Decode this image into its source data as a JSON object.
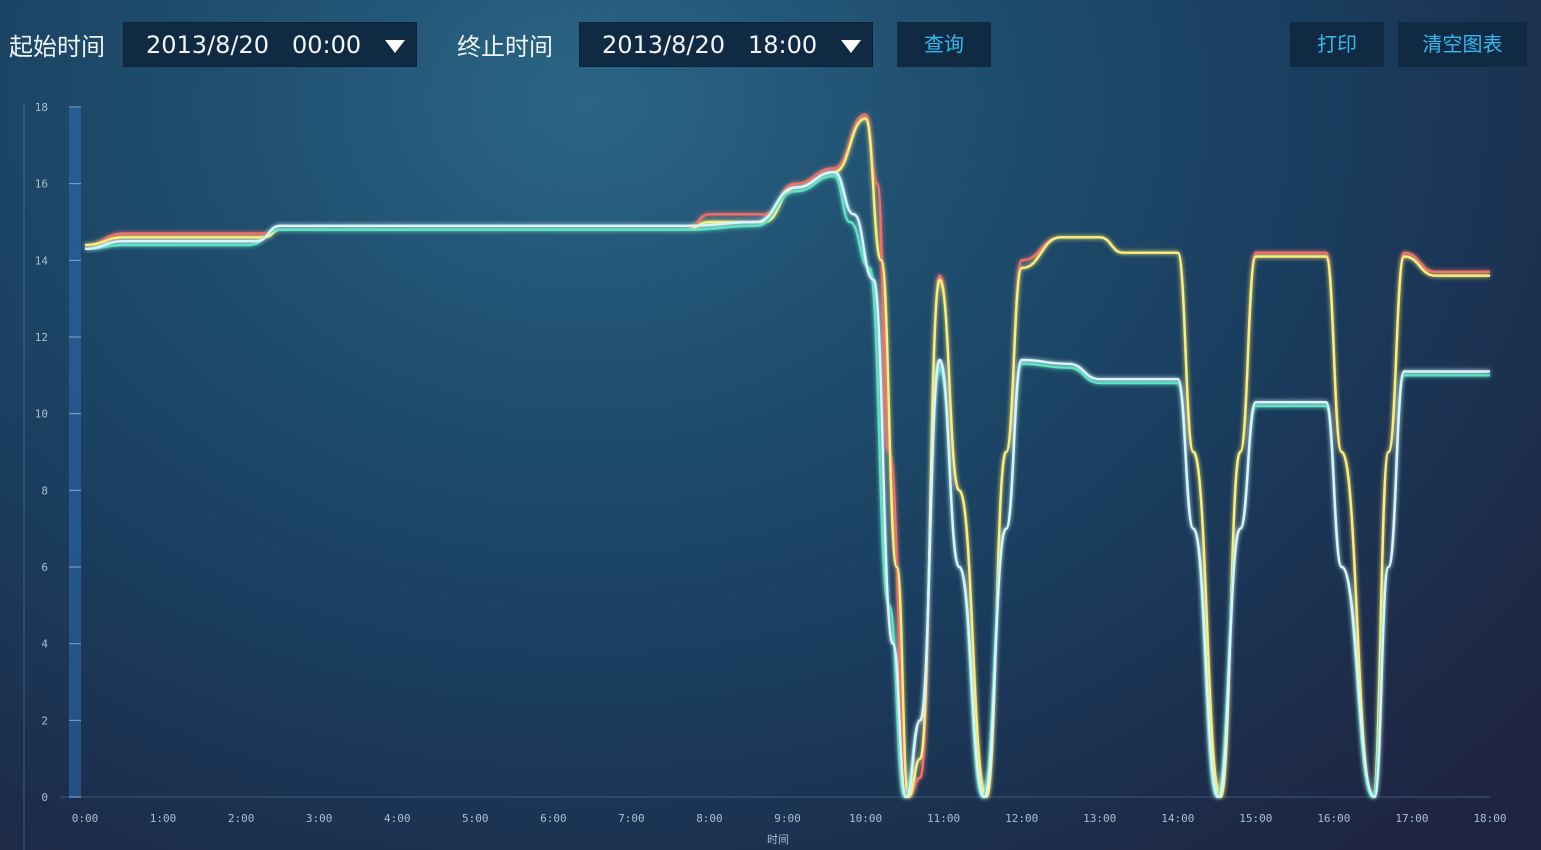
{
  "toolbar": {
    "start_label": "起始时间",
    "start_date": "2013/8/20",
    "start_time": "00:00",
    "end_label": "终止时间",
    "end_date": "2013/8/20",
    "end_time": "18:00",
    "query_label": "查询",
    "print_label": "打印",
    "clear_label": "清空图表"
  },
  "colors": {
    "accent_text": "#35b9ee",
    "control_bg": "#112a44",
    "axis_bar": "#2e6db0",
    "series": [
      "#f0706a",
      "#f7f07a",
      "#5de3c2",
      "#d8f4ff"
    ]
  },
  "chart_data": {
    "type": "line",
    "xlabel": "时间",
    "ylabel": "",
    "xlim": [
      0,
      18
    ],
    "ylim": [
      0,
      18
    ],
    "grid": false,
    "x_ticks": [
      "0:00",
      "1:00",
      "2:00",
      "3:00",
      "4:00",
      "5:00",
      "6:00",
      "7:00",
      "8:00",
      "9:00",
      "10:00",
      "11:00",
      "12:00",
      "13:00",
      "14:00",
      "15:00",
      "16:00",
      "17:00",
      "18:00"
    ],
    "y_ticks": [
      0,
      2,
      4,
      6,
      8,
      10,
      12,
      14,
      16,
      18
    ],
    "series": [
      {
        "values": [
          [
            0,
            14.4
          ],
          [
            0.5,
            14.7
          ],
          [
            2.3,
            14.7
          ],
          [
            2.5,
            14.8
          ],
          [
            7.7,
            14.8
          ],
          [
            8.0,
            15.2
          ],
          [
            8.7,
            15.2
          ],
          [
            9.1,
            16.0
          ],
          [
            9.6,
            16.4
          ],
          [
            10.0,
            17.8
          ],
          [
            10.15,
            16.0
          ],
          [
            10.3,
            9.0
          ],
          [
            10.55,
            0.0
          ],
          [
            10.7,
            0.5
          ],
          [
            10.95,
            13.6
          ],
          [
            11.2,
            8.0
          ],
          [
            11.55,
            0.0
          ],
          [
            11.8,
            9.0
          ],
          [
            12.0,
            14.0
          ],
          [
            12.5,
            14.6
          ],
          [
            13.0,
            14.6
          ],
          [
            13.3,
            14.2
          ],
          [
            14.0,
            14.2
          ],
          [
            14.2,
            9.0
          ],
          [
            14.55,
            0.0
          ],
          [
            14.8,
            9.0
          ],
          [
            15.0,
            14.2
          ],
          [
            15.9,
            14.2
          ],
          [
            16.1,
            9.0
          ],
          [
            16.5,
            0.0
          ],
          [
            16.7,
            9.0
          ],
          [
            16.9,
            14.2
          ],
          [
            17.3,
            13.7
          ],
          [
            18.0,
            13.7
          ]
        ]
      },
      {
        "values": [
          [
            0,
            14.4
          ],
          [
            0.5,
            14.6
          ],
          [
            2.3,
            14.6
          ],
          [
            2.5,
            14.8
          ],
          [
            7.7,
            14.8
          ],
          [
            8.0,
            15.0
          ],
          [
            8.7,
            15.0
          ],
          [
            9.1,
            15.9
          ],
          [
            9.6,
            16.3
          ],
          [
            10.0,
            17.7
          ],
          [
            10.2,
            14.0
          ],
          [
            10.4,
            6.0
          ],
          [
            10.55,
            0.0
          ],
          [
            10.7,
            1.0
          ],
          [
            10.95,
            13.5
          ],
          [
            11.2,
            8.0
          ],
          [
            11.55,
            0.0
          ],
          [
            11.8,
            9.0
          ],
          [
            12.0,
            13.8
          ],
          [
            12.5,
            14.6
          ],
          [
            13.0,
            14.6
          ],
          [
            13.3,
            14.2
          ],
          [
            14.0,
            14.2
          ],
          [
            14.2,
            9.0
          ],
          [
            14.55,
            0.0
          ],
          [
            14.8,
            9.0
          ],
          [
            15.0,
            14.1
          ],
          [
            15.9,
            14.1
          ],
          [
            16.1,
            9.0
          ],
          [
            16.5,
            0.0
          ],
          [
            16.7,
            9.0
          ],
          [
            16.9,
            14.1
          ],
          [
            17.3,
            13.6
          ],
          [
            18.0,
            13.6
          ]
        ]
      },
      {
        "values": [
          [
            0,
            14.3
          ],
          [
            0.5,
            14.4
          ],
          [
            2.1,
            14.4
          ],
          [
            2.5,
            14.8
          ],
          [
            7.7,
            14.8
          ],
          [
            8.6,
            14.9
          ],
          [
            9.1,
            15.8
          ],
          [
            9.6,
            16.2
          ],
          [
            9.8,
            15.0
          ],
          [
            10.05,
            13.8
          ],
          [
            10.3,
            5.0
          ],
          [
            10.5,
            0.0
          ],
          [
            10.7,
            2.0
          ],
          [
            10.95,
            11.2
          ],
          [
            11.2,
            6.0
          ],
          [
            11.5,
            0.0
          ],
          [
            11.8,
            7.0
          ],
          [
            12.0,
            11.3
          ],
          [
            12.6,
            11.2
          ],
          [
            13.0,
            10.8
          ],
          [
            14.0,
            10.8
          ],
          [
            14.2,
            7.0
          ],
          [
            14.5,
            0.0
          ],
          [
            14.8,
            7.0
          ],
          [
            15.0,
            10.2
          ],
          [
            15.9,
            10.2
          ],
          [
            16.1,
            6.0
          ],
          [
            16.5,
            0.0
          ],
          [
            16.7,
            6.0
          ],
          [
            16.9,
            11.0
          ],
          [
            18.0,
            11.0
          ]
        ]
      },
      {
        "values": [
          [
            0,
            14.3
          ],
          [
            0.5,
            14.5
          ],
          [
            2.2,
            14.5
          ],
          [
            2.5,
            14.9
          ],
          [
            7.7,
            14.9
          ],
          [
            8.6,
            15.0
          ],
          [
            9.1,
            15.9
          ],
          [
            9.6,
            16.3
          ],
          [
            9.85,
            15.2
          ],
          [
            10.1,
            13.5
          ],
          [
            10.35,
            4.0
          ],
          [
            10.52,
            0.0
          ],
          [
            10.7,
            2.0
          ],
          [
            10.95,
            11.4
          ],
          [
            11.2,
            6.0
          ],
          [
            11.52,
            0.0
          ],
          [
            11.8,
            7.0
          ],
          [
            12.0,
            11.4
          ],
          [
            12.6,
            11.3
          ],
          [
            13.0,
            10.9
          ],
          [
            14.0,
            10.9
          ],
          [
            14.2,
            7.0
          ],
          [
            14.52,
            0.0
          ],
          [
            14.8,
            7.0
          ],
          [
            15.0,
            10.3
          ],
          [
            15.9,
            10.3
          ],
          [
            16.1,
            6.0
          ],
          [
            16.52,
            0.0
          ],
          [
            16.7,
            6.0
          ],
          [
            16.9,
            11.1
          ],
          [
            18.0,
            11.1
          ]
        ]
      }
    ]
  }
}
